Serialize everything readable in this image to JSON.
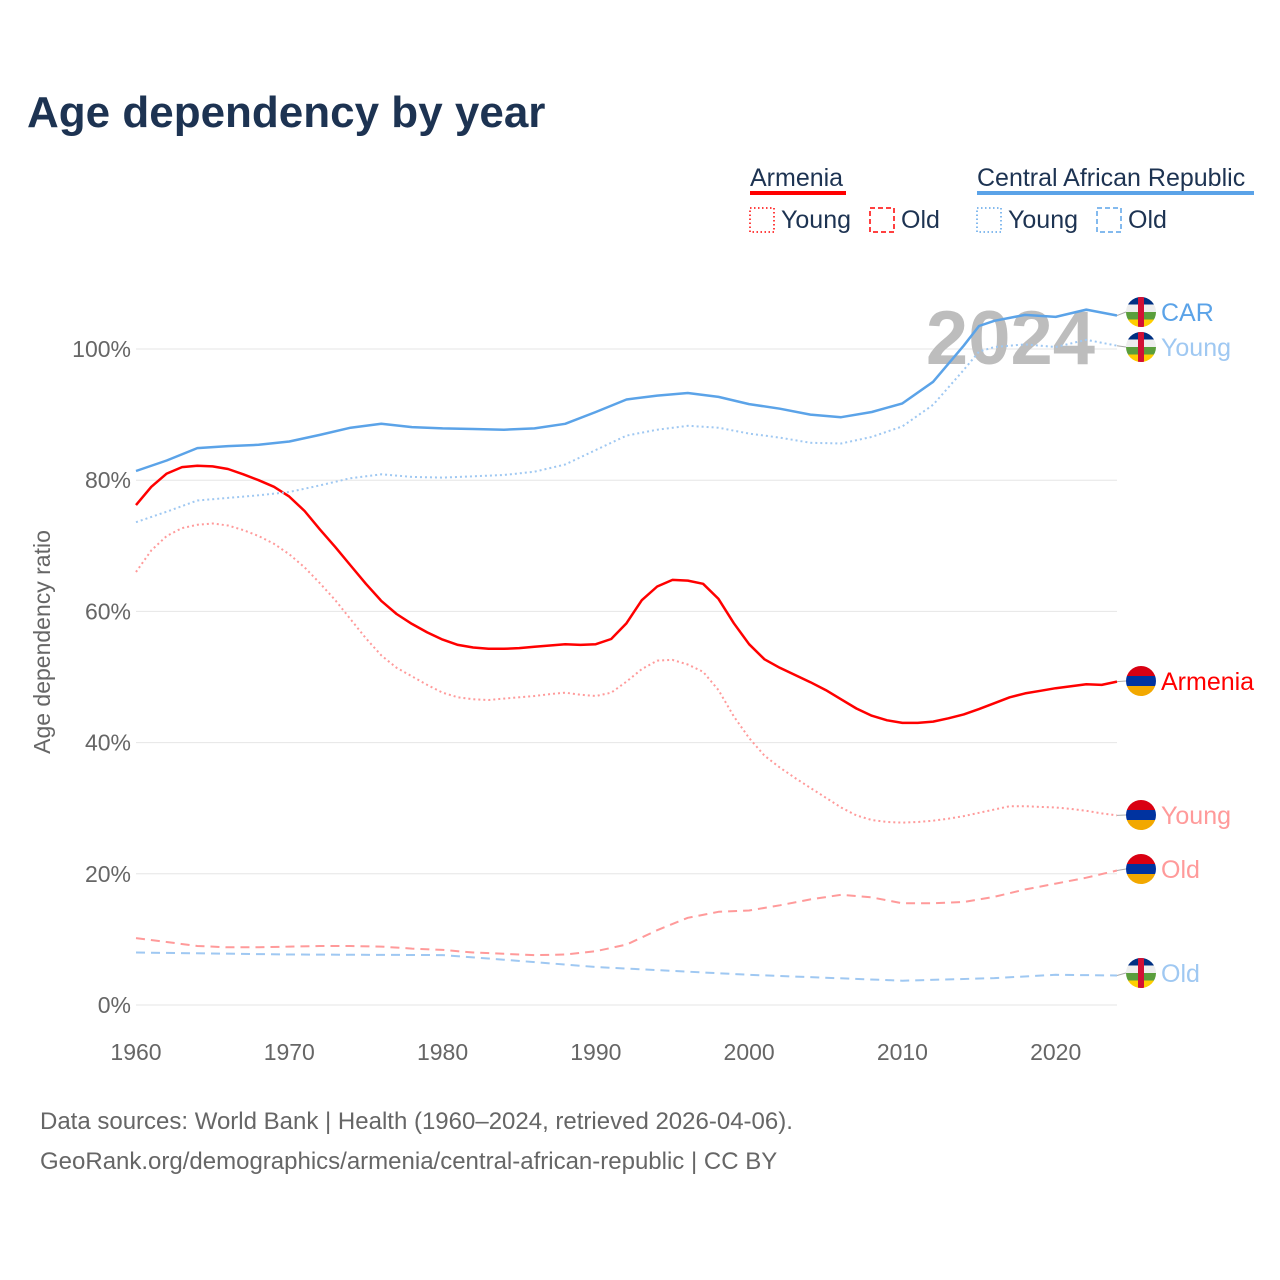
{
  "chart_data": {
    "type": "line",
    "title": "Age dependency by year",
    "xlabel": "",
    "ylabel": "Age dependency ratio",
    "xlim": [
      1960,
      2024
    ],
    "ylim": [
      0,
      100
    ],
    "x_ticks": [
      "1960",
      "1970",
      "1980",
      "1990",
      "2000",
      "2010",
      "2020"
    ],
    "y_ticks": [
      "0%",
      "20%",
      "40%",
      "60%",
      "80%",
      "100%"
    ],
    "year_watermark": "2024",
    "legend": {
      "groups": [
        {
          "name": "Armenia",
          "color": "#ff0000",
          "items": [
            "Young",
            "Old"
          ]
        },
        {
          "name": "Central African Republic",
          "color": "#5ba3e8",
          "items": [
            "Young",
            "Old"
          ]
        }
      ],
      "placement": "top-right"
    },
    "series": [
      {
        "name": "Armenia",
        "label": "Armenia",
        "color": "#ff0000",
        "style": "solid",
        "flag": "armenia",
        "x": [
          1960,
          1961,
          1962,
          1963,
          1964,
          1965,
          1966,
          1967,
          1968,
          1969,
          1970,
          1971,
          1972,
          1973,
          1974,
          1975,
          1976,
          1977,
          1978,
          1979,
          1980,
          1981,
          1982,
          1983,
          1984,
          1985,
          1986,
          1987,
          1988,
          1989,
          1990,
          1991,
          1992,
          1993,
          1994,
          1995,
          1996,
          1997,
          1998,
          1999,
          2000,
          2001,
          2002,
          2003,
          2004,
          2005,
          2006,
          2007,
          2008,
          2009,
          2010,
          2011,
          2012,
          2013,
          2014,
          2015,
          2016,
          2017,
          2018,
          2019,
          2020,
          2021,
          2022,
          2023,
          2024
        ],
        "values": [
          76.2,
          79,
          81,
          82,
          82.2,
          82.1,
          81.7,
          80.9,
          80,
          79,
          77.5,
          75.3,
          72.5,
          69.8,
          67,
          64.2,
          61.6,
          59.6,
          58.1,
          56.8,
          55.7,
          54.9,
          54.5,
          54.3,
          54.3,
          54.4,
          54.6,
          54.8,
          55,
          54.9,
          55,
          55.8,
          58.2,
          61.7,
          63.8,
          64.8,
          64.7,
          64.2,
          61.9,
          58.2,
          55,
          52.7,
          51.4,
          50.3,
          49.2,
          48,
          46.6,
          45.2,
          44.1,
          43.4,
          43,
          43,
          43.2,
          43.7,
          44.3,
          45.1,
          46,
          46.9,
          47.5,
          47.9,
          48.3,
          48.6,
          48.9,
          48.8,
          49.3
        ]
      },
      {
        "name": "Armenia Young",
        "label": "Young",
        "color": "#ff9a9a",
        "style": "dotted",
        "flag": "armenia",
        "x": [
          1960,
          1961,
          1962,
          1963,
          1964,
          1965,
          1966,
          1967,
          1968,
          1969,
          1970,
          1971,
          1972,
          1973,
          1974,
          1975,
          1976,
          1977,
          1978,
          1979,
          1980,
          1981,
          1982,
          1983,
          1984,
          1985,
          1986,
          1987,
          1988,
          1989,
          1990,
          1991,
          1992,
          1993,
          1994,
          1995,
          1996,
          1997,
          1998,
          1999,
          2000,
          2001,
          2002,
          2003,
          2004,
          2005,
          2006,
          2007,
          2008,
          2009,
          2010,
          2011,
          2012,
          2013,
          2014,
          2015,
          2016,
          2017,
          2018,
          2019,
          2020,
          2021,
          2022,
          2023,
          2024
        ],
        "values": [
          66,
          69.3,
          71.5,
          72.7,
          73.2,
          73.4,
          73.1,
          72.4,
          71.5,
          70.3,
          68.7,
          66.7,
          64.3,
          61.7,
          58.8,
          55.9,
          53.3,
          51.4,
          50.1,
          48.8,
          47.6,
          46.9,
          46.6,
          46.5,
          46.7,
          46.9,
          47.1,
          47.4,
          47.6,
          47.3,
          47.1,
          47.6,
          49.3,
          51.2,
          52.5,
          52.6,
          51.9,
          50.8,
          48,
          44,
          40.7,
          38,
          36.2,
          34.6,
          33.1,
          31.6,
          30.1,
          28.9,
          28.2,
          27.9,
          27.8,
          27.9,
          28.1,
          28.4,
          28.8,
          29.3,
          29.8,
          30.3,
          30.3,
          30.2,
          30.1,
          29.9,
          29.6,
          29.2,
          28.9
        ]
      },
      {
        "name": "Armenia Old",
        "label": "Old",
        "color": "#ff9a9a",
        "style": "dashed",
        "flag": "armenia",
        "x": [
          1960,
          1962,
          1964,
          1966,
          1968,
          1970,
          1972,
          1974,
          1976,
          1978,
          1980,
          1982,
          1984,
          1986,
          1988,
          1990,
          1992,
          1994,
          1996,
          1998,
          2000,
          2002,
          2004,
          2006,
          2008,
          2010,
          2012,
          2014,
          2016,
          2018,
          2020,
          2022,
          2024
        ],
        "values": [
          10.2,
          9.6,
          9,
          8.8,
          8.8,
          8.9,
          9,
          9,
          8.9,
          8.6,
          8.4,
          8,
          7.8,
          7.6,
          7.7,
          8.2,
          9.2,
          11.4,
          13.3,
          14.2,
          14.4,
          15.2,
          16.1,
          16.8,
          16.4,
          15.5,
          15.5,
          15.7,
          16.5,
          17.6,
          18.5,
          19.4,
          20.5
        ]
      },
      {
        "name": "Central African Republic",
        "label": "CAR",
        "color": "#5ba3e8",
        "style": "solid",
        "flag": "car",
        "x": [
          1960,
          1962,
          1964,
          1966,
          1968,
          1970,
          1972,
          1974,
          1976,
          1978,
          1980,
          1982,
          1984,
          1986,
          1988,
          1990,
          1992,
          1994,
          1996,
          1998,
          2000,
          2002,
          2004,
          2006,
          2008,
          2010,
          2012,
          2014,
          2015,
          2016,
          2018,
          2020,
          2022,
          2024
        ],
        "values": [
          81.4,
          83,
          84.9,
          85.2,
          85.4,
          85.9,
          86.9,
          88,
          88.6,
          88.1,
          87.9,
          87.8,
          87.7,
          87.9,
          88.6,
          90.4,
          92.3,
          92.9,
          93.3,
          92.7,
          91.6,
          90.9,
          90,
          89.6,
          90.4,
          91.7,
          95,
          100.5,
          103.5,
          104.3,
          105.2,
          104.9,
          106,
          105.1
        ]
      },
      {
        "name": "Central African Republic Young",
        "label": "Young",
        "color": "#9fc8f2",
        "style": "dotted",
        "flag": "car",
        "x": [
          1960,
          1962,
          1964,
          1966,
          1968,
          1970,
          1972,
          1974,
          1976,
          1978,
          1980,
          1982,
          1984,
          1986,
          1988,
          1990,
          1992,
          1994,
          1996,
          1998,
          2000,
          2002,
          2004,
          2006,
          2008,
          2010,
          2012,
          2014,
          2015,
          2016,
          2018,
          2020,
          2022,
          2024
        ],
        "values": [
          73.6,
          75.2,
          76.9,
          77.3,
          77.7,
          78.2,
          79.2,
          80.3,
          80.9,
          80.5,
          80.4,
          80.6,
          80.8,
          81.3,
          82.4,
          84.6,
          86.8,
          87.7,
          88.3,
          88,
          87.1,
          86.5,
          85.7,
          85.6,
          86.6,
          88.2,
          91.5,
          96.8,
          99.6,
          100.3,
          100.7,
          100.3,
          101.4,
          100.5
        ]
      },
      {
        "name": "Central African Republic Old",
        "label": "Old",
        "color": "#9fc8f2",
        "style": "dashed",
        "flag": "car",
        "x": [
          1960,
          1970,
          1980,
          1984,
          1990,
          2000,
          2010,
          2016,
          2020,
          2024
        ],
        "values": [
          8,
          7.7,
          7.6,
          6.9,
          5.8,
          4.6,
          3.7,
          4.1,
          4.6,
          4.5
        ]
      }
    ]
  },
  "footer": {
    "line1": "Data sources: World Bank | Health (1960–2024, retrieved 2026-04-06).",
    "line2": "GeoRank.org/demographics/armenia/central-african-republic | CC BY"
  }
}
